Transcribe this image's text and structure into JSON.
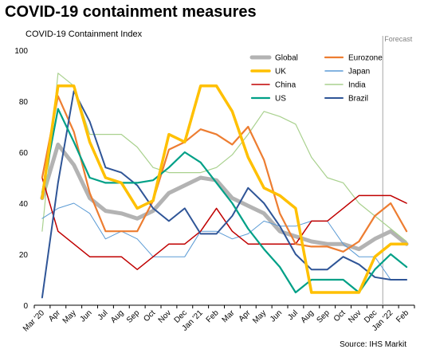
{
  "header": {
    "title": "COVID-19 containment measures",
    "subtitle": "COVID-19 Containment  Index",
    "source": "Source: IHS Markit"
  },
  "chart_data": {
    "type": "line",
    "title": "COVID-19 containment measures",
    "ylabel": "COVID-19 Containment  Index",
    "xlabel": "",
    "ylim": [
      0,
      100
    ],
    "yticks": [
      0,
      20,
      40,
      60,
      80,
      100
    ],
    "grid": false,
    "legend_position": "top-right",
    "annotation": "Forecast",
    "x": [
      "Mar '20",
      "Apr",
      "May",
      "Jun",
      "Jul",
      "Aug",
      "Sep",
      "Oct",
      "Nov",
      "Dec",
      "Jan '21",
      "Feb",
      "Mar",
      "Apr",
      "May",
      "Jun",
      "Jul",
      "Aug",
      "Sep",
      "Oct",
      "Nov",
      "Dec",
      "Jan '22",
      "Feb"
    ],
    "series": [
      {
        "name": "Global",
        "color": "#b3b3b3",
        "width": 5,
        "values": [
          42,
          63,
          55,
          42,
          37,
          36,
          34,
          37,
          44,
          47,
          50,
          49,
          42,
          39,
          36,
          29,
          27,
          25,
          24,
          24,
          22,
          26,
          29,
          24
        ]
      },
      {
        "name": "Eurozone",
        "color": "#ed7d31",
        "width": 2.2,
        "values": [
          50,
          82,
          68,
          44,
          29,
          29,
          29,
          41,
          61,
          64,
          69,
          67,
          63,
          70,
          57,
          36,
          24,
          23,
          23,
          21,
          25,
          35,
          40,
          29
        ]
      },
      {
        "name": "UK",
        "color": "#ffc000",
        "width": 3.5,
        "values": [
          42,
          86,
          86,
          64,
          50,
          48,
          38,
          41,
          67,
          64,
          86,
          86,
          76,
          58,
          46,
          43,
          38,
          5,
          5,
          5,
          5,
          19,
          24,
          24
        ]
      },
      {
        "name": "Japan",
        "color": "#5b9bd5",
        "width": 1,
        "values": [
          34,
          38,
          40,
          36,
          26,
          29,
          26,
          19,
          19,
          19,
          29,
          29,
          26,
          28,
          33,
          31,
          31,
          33,
          33,
          24,
          19,
          19,
          10,
          10
        ]
      },
      {
        "name": "China",
        "color": "#c00000",
        "width": 1.5,
        "values": [
          50,
          29,
          24,
          19,
          19,
          19,
          14,
          19,
          24,
          24,
          29,
          38,
          29,
          24,
          24,
          24,
          24,
          33,
          33,
          38,
          43,
          43,
          43,
          40
        ]
      },
      {
        "name": "India",
        "color": "#a9d18e",
        "width": 1.2,
        "values": [
          29,
          91,
          86,
          67,
          67,
          67,
          62,
          54,
          52,
          52,
          52,
          54,
          59,
          67,
          76,
          74,
          71,
          58,
          50,
          48,
          40,
          35,
          30,
          25
        ]
      },
      {
        "name": "US",
        "color": "#00a087",
        "width": 2.2,
        "values": [
          44,
          77,
          64,
          50,
          48,
          48,
          48,
          49,
          54,
          60,
          56,
          48,
          40,
          30,
          22,
          15,
          5,
          10,
          10,
          10,
          5,
          14,
          20,
          15
        ]
      },
      {
        "name": "Brazil",
        "color": "#2f5597",
        "width": 2,
        "values": [
          3,
          48,
          84,
          72,
          54,
          52,
          47,
          38,
          33,
          38,
          28,
          28,
          35,
          46,
          40,
          31,
          20,
          14,
          14,
          19,
          16,
          11,
          10,
          10
        ]
      }
    ]
  }
}
